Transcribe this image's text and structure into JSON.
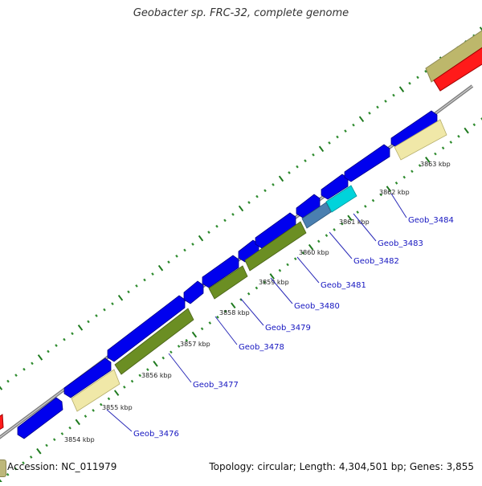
{
  "title": "Geobacter sp. FRC-32, complete genome",
  "accession_text": "Accession: NC_011979",
  "summary_text": "Topology: circular; Length: 4,304,501 bp; Genes: 3,855",
  "colors": {
    "backbone": "#8a8a8a",
    "cds_forward": "#0000ee",
    "cds_reverse_green": "#6b8e23",
    "cds_pale": "#eee8aa",
    "cds_khaki": "#bdb76b",
    "cds_cyan": "#00ced1",
    "cds_steel": "#4682b4",
    "rna_red": "#ff0000",
    "gene_label": "#0000cc",
    "tick_green": "#2e8b2e"
  },
  "scale_labels": [
    "3854 kbp",
    "3855 kbp",
    "3856 kbp",
    "3857 kbp",
    "3858 kbp",
    "3859 kbp",
    "3860 kbp",
    "3861 kbp",
    "3862 kbp",
    "3863 kbp"
  ],
  "gene_labels": [
    "Geob_3476",
    "Geob_3477",
    "Geob_3478",
    "Geob_3479",
    "Geob_3480",
    "Geob_3481",
    "Geob_3482",
    "Geob_3483",
    "Geob_3484"
  ]
}
